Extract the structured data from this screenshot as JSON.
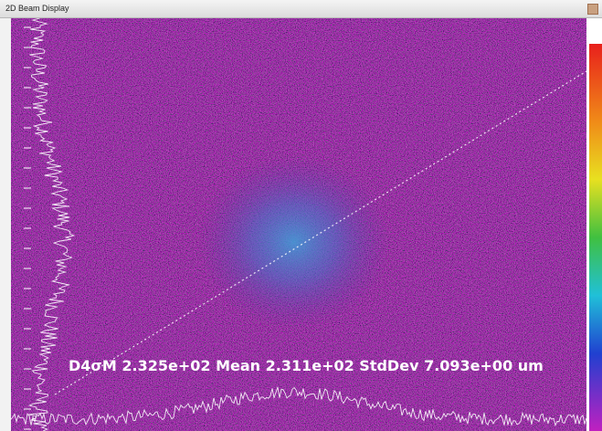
{
  "window": {
    "title": "2D Beam Display"
  },
  "overlay": {
    "readout": "D4σM 2.325e+02 Mean 2.311e+02 StdDev 7.093e+00 um"
  }
}
